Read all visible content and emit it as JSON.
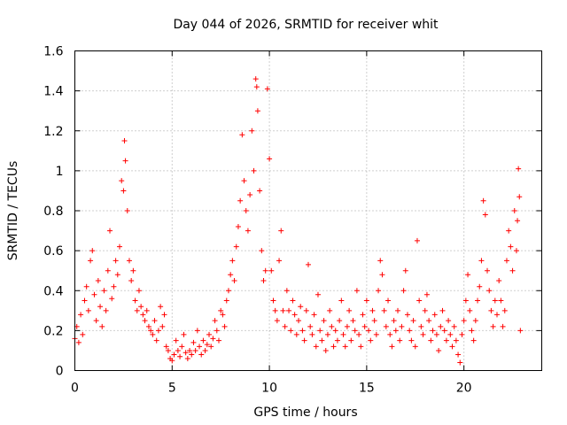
{
  "chart_data": {
    "type": "scatter",
    "title": "Day 044 of 2026, SRMTID for receiver whit",
    "xlabel": "GPS time / hours",
    "ylabel": "SRMTID / TECUs",
    "xlim": [
      0,
      24
    ],
    "ylim": [
      0,
      1.6
    ],
    "xticks": [
      0,
      5,
      10,
      15,
      20
    ],
    "xtick_labels": [
      "0",
      "5",
      "10",
      "15",
      "20"
    ],
    "yticks": [
      0,
      0.2,
      0.4,
      0.6,
      0.8,
      1.0,
      1.2,
      1.4,
      1.6
    ],
    "ytick_labels": [
      "0",
      "0.2",
      "0.4",
      "0.6",
      "0.8",
      "1",
      "1.2",
      "1.4",
      "1.6"
    ],
    "grid": true,
    "marker": "plus",
    "color": "#ff0000",
    "series": [
      {
        "name": "SRMTID",
        "points": [
          [
            0.0,
            0.16
          ],
          [
            0.1,
            0.22
          ],
          [
            0.2,
            0.14
          ],
          [
            0.3,
            0.28
          ],
          [
            0.4,
            0.18
          ],
          [
            0.5,
            0.35
          ],
          [
            0.6,
            0.42
          ],
          [
            0.7,
            0.3
          ],
          [
            0.8,
            0.55
          ],
          [
            0.9,
            0.6
          ],
          [
            1.0,
            0.38
          ],
          [
            1.1,
            0.25
          ],
          [
            1.2,
            0.45
          ],
          [
            1.3,
            0.32
          ],
          [
            1.4,
            0.22
          ],
          [
            1.5,
            0.4
          ],
          [
            1.6,
            0.3
          ],
          [
            1.7,
            0.5
          ],
          [
            1.8,
            0.7
          ],
          [
            1.9,
            0.36
          ],
          [
            2.0,
            0.42
          ],
          [
            2.1,
            0.55
          ],
          [
            2.2,
            0.48
          ],
          [
            2.3,
            0.62
          ],
          [
            2.4,
            0.95
          ],
          [
            2.5,
            0.9
          ],
          [
            2.55,
            1.15
          ],
          [
            2.6,
            1.05
          ],
          [
            2.7,
            0.8
          ],
          [
            2.8,
            0.55
          ],
          [
            2.9,
            0.45
          ],
          [
            3.0,
            0.5
          ],
          [
            3.1,
            0.35
          ],
          [
            3.2,
            0.3
          ],
          [
            3.3,
            0.4
          ],
          [
            3.4,
            0.32
          ],
          [
            3.5,
            0.28
          ],
          [
            3.6,
            0.25
          ],
          [
            3.7,
            0.3
          ],
          [
            3.8,
            0.22
          ],
          [
            3.9,
            0.2
          ],
          [
            4.0,
            0.18
          ],
          [
            4.1,
            0.25
          ],
          [
            4.2,
            0.15
          ],
          [
            4.3,
            0.2
          ],
          [
            4.4,
            0.32
          ],
          [
            4.5,
            0.22
          ],
          [
            4.6,
            0.28
          ],
          [
            4.7,
            0.12
          ],
          [
            4.8,
            0.1
          ],
          [
            4.9,
            0.06
          ],
          [
            5.0,
            0.05
          ],
          [
            5.1,
            0.08
          ],
          [
            5.2,
            0.15
          ],
          [
            5.3,
            0.1
          ],
          [
            5.4,
            0.07
          ],
          [
            5.5,
            0.12
          ],
          [
            5.6,
            0.18
          ],
          [
            5.7,
            0.09
          ],
          [
            5.8,
            0.06
          ],
          [
            5.9,
            0.1
          ],
          [
            6.0,
            0.08
          ],
          [
            6.1,
            0.14
          ],
          [
            6.2,
            0.1
          ],
          [
            6.3,
            0.2
          ],
          [
            6.4,
            0.12
          ],
          [
            6.5,
            0.08
          ],
          [
            6.6,
            0.15
          ],
          [
            6.7,
            0.1
          ],
          [
            6.8,
            0.13
          ],
          [
            6.9,
            0.18
          ],
          [
            7.0,
            0.12
          ],
          [
            7.1,
            0.16
          ],
          [
            7.2,
            0.25
          ],
          [
            7.3,
            0.2
          ],
          [
            7.4,
            0.15
          ],
          [
            7.5,
            0.3
          ],
          [
            7.6,
            0.28
          ],
          [
            7.7,
            0.22
          ],
          [
            7.8,
            0.35
          ],
          [
            7.9,
            0.4
          ],
          [
            8.0,
            0.48
          ],
          [
            8.1,
            0.55
          ],
          [
            8.2,
            0.45
          ],
          [
            8.3,
            0.62
          ],
          [
            8.4,
            0.72
          ],
          [
            8.5,
            0.85
          ],
          [
            8.6,
            1.18
          ],
          [
            8.7,
            0.95
          ],
          [
            8.8,
            0.8
          ],
          [
            8.9,
            0.7
          ],
          [
            9.0,
            0.88
          ],
          [
            9.1,
            1.2
          ],
          [
            9.2,
            1.0
          ],
          [
            9.3,
            1.46
          ],
          [
            9.35,
            1.42
          ],
          [
            9.4,
            1.3
          ],
          [
            9.5,
            0.9
          ],
          [
            9.6,
            0.6
          ],
          [
            9.7,
            0.45
          ],
          [
            9.8,
            0.5
          ],
          [
            9.9,
            1.41
          ],
          [
            10.0,
            1.06
          ],
          [
            10.1,
            0.5
          ],
          [
            10.2,
            0.35
          ],
          [
            10.3,
            0.3
          ],
          [
            10.4,
            0.25
          ],
          [
            10.5,
            0.55
          ],
          [
            10.6,
            0.7
          ],
          [
            10.7,
            0.3
          ],
          [
            10.8,
            0.22
          ],
          [
            10.9,
            0.4
          ],
          [
            11.0,
            0.3
          ],
          [
            11.1,
            0.2
          ],
          [
            11.2,
            0.35
          ],
          [
            11.3,
            0.28
          ],
          [
            11.4,
            0.18
          ],
          [
            11.5,
            0.25
          ],
          [
            11.6,
            0.32
          ],
          [
            11.7,
            0.2
          ],
          [
            11.8,
            0.15
          ],
          [
            11.9,
            0.3
          ],
          [
            12.0,
            0.53
          ],
          [
            12.1,
            0.22
          ],
          [
            12.2,
            0.18
          ],
          [
            12.3,
            0.28
          ],
          [
            12.4,
            0.12
          ],
          [
            12.5,
            0.38
          ],
          [
            12.6,
            0.2
          ],
          [
            12.7,
            0.15
          ],
          [
            12.8,
            0.25
          ],
          [
            12.9,
            0.1
          ],
          [
            13.0,
            0.18
          ],
          [
            13.1,
            0.3
          ],
          [
            13.2,
            0.22
          ],
          [
            13.3,
            0.12
          ],
          [
            13.4,
            0.2
          ],
          [
            13.5,
            0.15
          ],
          [
            13.6,
            0.25
          ],
          [
            13.7,
            0.35
          ],
          [
            13.8,
            0.18
          ],
          [
            13.9,
            0.12
          ],
          [
            14.0,
            0.22
          ],
          [
            14.1,
            0.3
          ],
          [
            14.2,
            0.15
          ],
          [
            14.3,
            0.25
          ],
          [
            14.4,
            0.2
          ],
          [
            14.5,
            0.4
          ],
          [
            14.6,
            0.18
          ],
          [
            14.7,
            0.12
          ],
          [
            14.8,
            0.28
          ],
          [
            14.9,
            0.22
          ],
          [
            15.0,
            0.35
          ],
          [
            15.1,
            0.2
          ],
          [
            15.2,
            0.15
          ],
          [
            15.3,
            0.3
          ],
          [
            15.4,
            0.25
          ],
          [
            15.5,
            0.18
          ],
          [
            15.6,
            0.4
          ],
          [
            15.7,
            0.55
          ],
          [
            15.8,
            0.48
          ],
          [
            15.9,
            0.3
          ],
          [
            16.0,
            0.22
          ],
          [
            16.1,
            0.35
          ],
          [
            16.2,
            0.18
          ],
          [
            16.3,
            0.12
          ],
          [
            16.4,
            0.25
          ],
          [
            16.5,
            0.2
          ],
          [
            16.6,
            0.3
          ],
          [
            16.7,
            0.15
          ],
          [
            16.8,
            0.22
          ],
          [
            16.9,
            0.4
          ],
          [
            17.0,
            0.5
          ],
          [
            17.1,
            0.28
          ],
          [
            17.2,
            0.2
          ],
          [
            17.3,
            0.15
          ],
          [
            17.4,
            0.25
          ],
          [
            17.5,
            0.12
          ],
          [
            17.6,
            0.65
          ],
          [
            17.7,
            0.35
          ],
          [
            17.8,
            0.22
          ],
          [
            17.9,
            0.18
          ],
          [
            18.0,
            0.3
          ],
          [
            18.1,
            0.38
          ],
          [
            18.2,
            0.25
          ],
          [
            18.3,
            0.15
          ],
          [
            18.4,
            0.2
          ],
          [
            18.5,
            0.28
          ],
          [
            18.6,
            0.18
          ],
          [
            18.7,
            0.1
          ],
          [
            18.8,
            0.22
          ],
          [
            18.9,
            0.3
          ],
          [
            19.0,
            0.2
          ],
          [
            19.1,
            0.15
          ],
          [
            19.2,
            0.25
          ],
          [
            19.3,
            0.18
          ],
          [
            19.4,
            0.12
          ],
          [
            19.5,
            0.22
          ],
          [
            19.6,
            0.15
          ],
          [
            19.7,
            0.08
          ],
          [
            19.8,
            0.04
          ],
          [
            19.9,
            0.18
          ],
          [
            20.0,
            0.25
          ],
          [
            20.1,
            0.35
          ],
          [
            20.2,
            0.48
          ],
          [
            20.3,
            0.3
          ],
          [
            20.4,
            0.2
          ],
          [
            20.5,
            0.15
          ],
          [
            20.6,
            0.25
          ],
          [
            20.7,
            0.35
          ],
          [
            20.8,
            0.42
          ],
          [
            20.9,
            0.55
          ],
          [
            21.0,
            0.85
          ],
          [
            21.1,
            0.78
          ],
          [
            21.2,
            0.5
          ],
          [
            21.3,
            0.4
          ],
          [
            21.4,
            0.3
          ],
          [
            21.5,
            0.22
          ],
          [
            21.6,
            0.35
          ],
          [
            21.7,
            0.28
          ],
          [
            21.8,
            0.45
          ],
          [
            21.9,
            0.35
          ],
          [
            22.0,
            0.22
          ],
          [
            22.1,
            0.3
          ],
          [
            22.2,
            0.55
          ],
          [
            22.3,
            0.7
          ],
          [
            22.4,
            0.62
          ],
          [
            22.5,
            0.5
          ],
          [
            22.6,
            0.8
          ],
          [
            22.7,
            0.6
          ],
          [
            22.75,
            0.75
          ],
          [
            22.8,
            1.01
          ],
          [
            22.85,
            0.87
          ],
          [
            22.9,
            0.2
          ]
        ]
      }
    ]
  }
}
